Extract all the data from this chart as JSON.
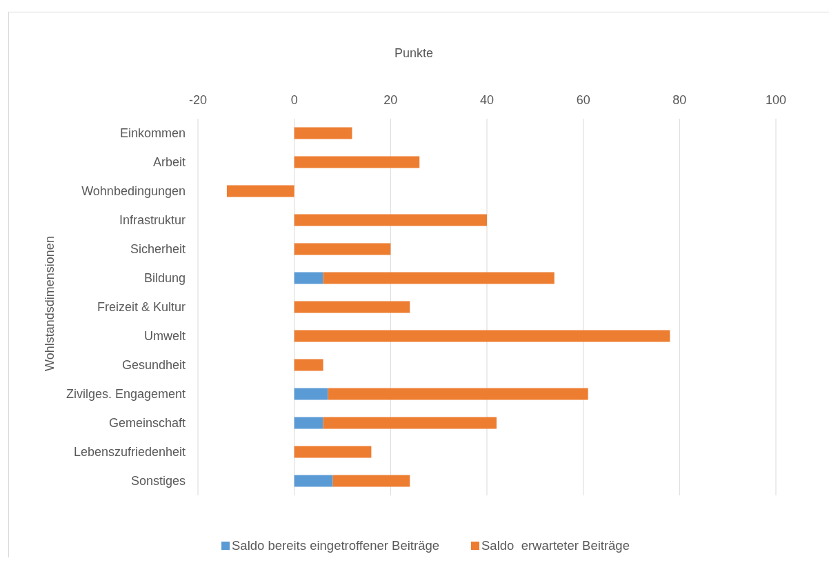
{
  "chart_data": {
    "type": "bar",
    "orientation": "horizontal",
    "stacked": true,
    "xlabel": "Punkte",
    "ylabel": "Wohlstandsdimensionen",
    "categories": [
      "Einkommen",
      "Arbeit",
      "Wohnbedingungen",
      "Infrastruktur",
      "Sicherheit",
      "Bildung",
      "Freizeit & Kultur",
      "Umwelt",
      "Gesundheit",
      "Zivilges. Engagement",
      "Gemeinschaft",
      "Lebenszufriedenheit",
      "Sonstiges"
    ],
    "series": [
      {
        "name": "Saldo bereits eingetroffener Beiträge",
        "color": "#5b9bd5",
        "values": [
          null,
          null,
          null,
          null,
          null,
          6,
          null,
          null,
          null,
          7,
          6,
          null,
          8
        ]
      },
      {
        "name": "Saldo  erwarteter Beiträge",
        "color": "#ed7d31",
        "values": [
          12,
          26,
          -14,
          40,
          20,
          48,
          24,
          78,
          6,
          54,
          36,
          16,
          16
        ]
      }
    ],
    "xlim": [
      -20,
      100
    ],
    "xticks": [
      -20,
      0,
      20,
      40,
      60,
      80,
      100
    ],
    "grid": "x",
    "legend": "bottom"
  }
}
